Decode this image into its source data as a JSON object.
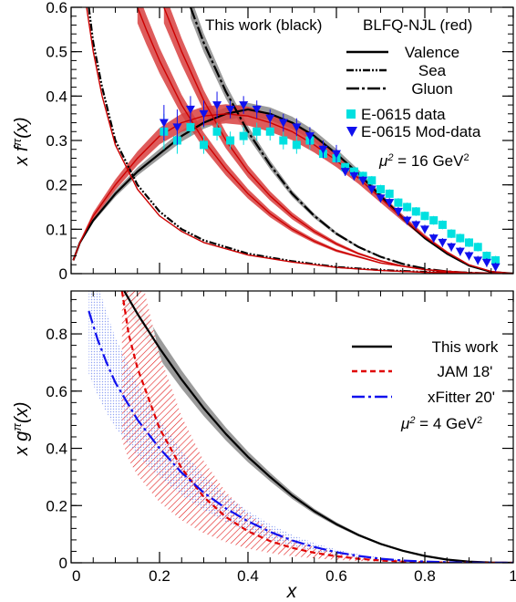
{
  "chart_data": [
    {
      "type": "line",
      "panel": "top",
      "ylabel": "x f^π(x)",
      "ylabel_base": "x f",
      "ylabel_sup": "π",
      "ylabel_tail": "(x)",
      "xlim": [
        0,
        1
      ],
      "ylim": [
        0,
        0.6
      ],
      "yticks": [
        "0",
        "0.1",
        "0.2",
        "0.3",
        "0.4",
        "0.5",
        "0.6"
      ],
      "ytick_values": [
        0,
        0.1,
        0.2,
        0.3,
        0.4,
        0.5,
        0.6
      ],
      "xticks": [
        0,
        0.2,
        0.4,
        0.6,
        0.8,
        1.0
      ],
      "header_left": "This work (black)",
      "header_right": "BLFQ-NJL (red)",
      "scale_label": "μ² = 16 GeV²",
      "scale_base": "μ",
      "scale_sup": "2",
      "scale_value": " = 16 GeV",
      "scale_unit_sup": "2",
      "legend_placement": "top-right",
      "legend": [
        {
          "label": "Valence",
          "style": "solid"
        },
        {
          "label": "Sea",
          "style": "dash-dot-dot"
        },
        {
          "label": "Gluon",
          "style": "long-dash-dot"
        },
        {
          "label": "E-0615 data",
          "marker": "square",
          "color": "#00e0e0"
        },
        {
          "label": "E-0615 Mod-data",
          "marker": "triangle-down",
          "color": "#1010ee"
        }
      ],
      "series": [
        {
          "name": "Valence",
          "color": "#000000",
          "band_color": "#8a8a8a",
          "x": [
            0.005,
            0.02,
            0.05,
            0.1,
            0.15,
            0.2,
            0.25,
            0.3,
            0.35,
            0.4,
            0.45,
            0.5,
            0.55,
            0.6,
            0.65,
            0.7,
            0.75,
            0.8,
            0.85,
            0.9,
            0.95,
            1.0
          ],
          "y": [
            0.03,
            0.07,
            0.12,
            0.18,
            0.23,
            0.27,
            0.31,
            0.34,
            0.36,
            0.37,
            0.36,
            0.34,
            0.31,
            0.27,
            0.225,
            0.175,
            0.125,
            0.08,
            0.045,
            0.018,
            0.004,
            0.0
          ]
        },
        {
          "name": "Sea",
          "color": "#000000",
          "x": [
            0.04,
            0.05,
            0.07,
            0.1,
            0.15,
            0.2,
            0.25,
            0.3,
            0.4,
            0.5,
            0.6,
            0.7,
            0.8,
            0.9,
            1.0
          ],
          "y": [
            0.6,
            0.52,
            0.42,
            0.3,
            0.2,
            0.14,
            0.1,
            0.075,
            0.045,
            0.028,
            0.015,
            0.008,
            0.004,
            0.001,
            0.0
          ]
        },
        {
          "name": "Gluon",
          "color": "#000000",
          "band_color": "#8a8a8a",
          "x": [
            0.27,
            0.3,
            0.35,
            0.4,
            0.45,
            0.5,
            0.55,
            0.6,
            0.65,
            0.7,
            0.75,
            0.8,
            0.85,
            0.9,
            0.95,
            1.0
          ],
          "y": [
            0.6,
            0.52,
            0.41,
            0.32,
            0.245,
            0.18,
            0.13,
            0.09,
            0.06,
            0.038,
            0.022,
            0.011,
            0.005,
            0.002,
            0.0005,
            0.0
          ]
        },
        {
          "name": "BLFQ-NJL Valence",
          "color": "#cc0000",
          "band_color": "#d84040",
          "x": [
            0.005,
            0.02,
            0.05,
            0.1,
            0.15,
            0.2,
            0.25,
            0.3,
            0.35,
            0.4,
            0.45,
            0.5,
            0.55,
            0.6,
            0.65,
            0.7,
            0.75,
            0.8,
            0.85,
            0.9,
            0.95,
            1.0
          ],
          "y": [
            0.03,
            0.07,
            0.13,
            0.2,
            0.26,
            0.31,
            0.34,
            0.355,
            0.36,
            0.355,
            0.34,
            0.32,
            0.29,
            0.255,
            0.215,
            0.17,
            0.125,
            0.083,
            0.048,
            0.02,
            0.005,
            0.0
          ]
        },
        {
          "name": "BLFQ-NJL Sea",
          "color": "#cc0000",
          "x": [
            0.035,
            0.05,
            0.07,
            0.1,
            0.15,
            0.2,
            0.25,
            0.3,
            0.4,
            0.5,
            0.6,
            0.7,
            0.8,
            0.9,
            1.0
          ],
          "y": [
            0.6,
            0.5,
            0.4,
            0.29,
            0.19,
            0.13,
            0.095,
            0.07,
            0.042,
            0.026,
            0.014,
            0.007,
            0.003,
            0.001,
            0.0
          ]
        },
        {
          "name": "BLFQ-NJL Gluon",
          "color": "#cc0000",
          "band_color": "#d84040",
          "x": [
            0.21,
            0.25,
            0.3,
            0.35,
            0.4,
            0.45,
            0.5,
            0.55,
            0.6,
            0.65,
            0.7,
            0.75,
            0.8,
            0.85,
            0.9,
            0.95,
            1.0
          ],
          "y": [
            0.6,
            0.5,
            0.39,
            0.3,
            0.23,
            0.175,
            0.13,
            0.095,
            0.067,
            0.045,
            0.029,
            0.017,
            0.009,
            0.004,
            0.0015,
            0.0003,
            0.0
          ]
        },
        {
          "name": "BLFQ-NJL Steep",
          "color": "#cc0000",
          "band_color": "#d84040",
          "x": [
            0.15,
            0.17,
            0.2,
            0.25,
            0.3,
            0.35,
            0.4,
            0.45,
            0.5,
            0.55,
            0.6,
            0.7,
            0.8,
            0.9,
            1.0
          ],
          "y": [
            0.6,
            0.55,
            0.48,
            0.38,
            0.3,
            0.235,
            0.18,
            0.135,
            0.1,
            0.073,
            0.052,
            0.024,
            0.009,
            0.002,
            0.0
          ]
        }
      ],
      "scatter": [
        {
          "name": "E-0615 data",
          "color": "#00e0e0",
          "marker": "square",
          "x": [
            0.21,
            0.24,
            0.27,
            0.3,
            0.33,
            0.36,
            0.39,
            0.42,
            0.45,
            0.48,
            0.51,
            0.54,
            0.57,
            0.6,
            0.62,
            0.64,
            0.66,
            0.68,
            0.7,
            0.72,
            0.74,
            0.76,
            0.78,
            0.8,
            0.82,
            0.84,
            0.86,
            0.88,
            0.9,
            0.92,
            0.94,
            0.96
          ],
          "y": [
            0.32,
            0.3,
            0.33,
            0.29,
            0.32,
            0.3,
            0.31,
            0.32,
            0.32,
            0.3,
            0.29,
            0.3,
            0.27,
            0.26,
            0.24,
            0.23,
            0.22,
            0.21,
            0.19,
            0.18,
            0.16,
            0.15,
            0.14,
            0.13,
            0.12,
            0.11,
            0.09,
            0.08,
            0.07,
            0.06,
            0.04,
            0.03
          ],
          "err": [
            0.04,
            0.03,
            0.02,
            0.02,
            0.02,
            0.02,
            0.02,
            0.02,
            0.02,
            0.02,
            0.02,
            0.02,
            0.01,
            0.01,
            0.01,
            0.01,
            0.01,
            0.01,
            0.01,
            0.01,
            0.01,
            0.01,
            0.01,
            0.01,
            0.01,
            0.01,
            0.01,
            0.01,
            0.01,
            0.01,
            0.01,
            0.01
          ]
        },
        {
          "name": "E-0615 Mod-data",
          "color": "#1010ee",
          "marker": "triangle-down",
          "x": [
            0.21,
            0.24,
            0.27,
            0.3,
            0.33,
            0.36,
            0.39,
            0.42,
            0.45,
            0.48,
            0.51,
            0.54,
            0.57,
            0.6,
            0.62,
            0.64,
            0.66,
            0.68,
            0.7,
            0.72,
            0.74,
            0.76,
            0.78,
            0.8,
            0.82,
            0.84,
            0.86,
            0.88,
            0.9,
            0.92,
            0.94,
            0.96
          ],
          "y": [
            0.34,
            0.33,
            0.37,
            0.36,
            0.38,
            0.37,
            0.38,
            0.37,
            0.35,
            0.34,
            0.33,
            0.31,
            0.28,
            0.27,
            0.23,
            0.22,
            0.21,
            0.19,
            0.17,
            0.16,
            0.14,
            0.12,
            0.11,
            0.1,
            0.08,
            0.07,
            0.06,
            0.05,
            0.04,
            0.03,
            0.025,
            0.015
          ],
          "err": [
            0.04,
            0.04,
            0.03,
            0.03,
            0.03,
            0.02,
            0.02,
            0.02,
            0.02,
            0.02,
            0.02,
            0.02,
            0.02,
            0.02,
            0.01,
            0.01,
            0.01,
            0.01,
            0.01,
            0.01,
            0.01,
            0.01,
            0.01,
            0.01,
            0.01,
            0.01,
            0.01,
            0.01,
            0.01,
            0.01,
            0.01,
            0.01
          ]
        }
      ]
    },
    {
      "type": "line",
      "panel": "bottom",
      "xlabel": "x",
      "ylabel": "x g^π(x)",
      "ylabel_base": "x g",
      "ylabel_sup": "π",
      "ylabel_tail": "(x)",
      "xlim": [
        0,
        1
      ],
      "ylim": [
        0,
        0.95
      ],
      "yticks": [
        "0",
        "0.2",
        "0.4",
        "0.6",
        "0.8"
      ],
      "ytick_values": [
        0,
        0.2,
        0.4,
        0.6,
        0.8
      ],
      "xticks": [
        "0",
        "0.2",
        "0.4",
        "0.6",
        "0.8",
        "1"
      ],
      "xtick_values": [
        0,
        0.2,
        0.4,
        0.6,
        0.8,
        1.0
      ],
      "scale_label": "μ² = 4 GeV²",
      "scale_base": "μ",
      "scale_sup": "2",
      "scale_value": " = 4 GeV",
      "scale_unit_sup": "2",
      "legend_placement": "right",
      "legend": [
        {
          "label": "This work",
          "style": "solid",
          "color": "#000000"
        },
        {
          "label": "JAM 18'",
          "style": "dashed",
          "color": "#e00000"
        },
        {
          "label": "xFitter 20'",
          "style": "long-dash-dot",
          "color": "#1010ee"
        }
      ],
      "series": [
        {
          "name": "This work",
          "color": "#000000",
          "band_color": "#8a8a8a",
          "x": [
            0.12,
            0.15,
            0.2,
            0.25,
            0.3,
            0.35,
            0.4,
            0.45,
            0.5,
            0.55,
            0.6,
            0.65,
            0.7,
            0.75,
            0.8,
            0.85,
            0.9,
            0.95,
            1.0
          ],
          "y": [
            0.95,
            0.87,
            0.75,
            0.64,
            0.54,
            0.45,
            0.37,
            0.3,
            0.235,
            0.18,
            0.135,
            0.097,
            0.066,
            0.042,
            0.024,
            0.011,
            0.004,
            0.001,
            0.0
          ]
        },
        {
          "name": "JAM 18'",
          "color": "#e00000",
          "band_color": "#e00000",
          "x": [
            0.115,
            0.13,
            0.15,
            0.2,
            0.25,
            0.3,
            0.35,
            0.4,
            0.45,
            0.5,
            0.55,
            0.6,
            0.65,
            0.7,
            0.75,
            0.8,
            0.85,
            0.9,
            1.0
          ],
          "y": [
            0.95,
            0.8,
            0.68,
            0.47,
            0.33,
            0.23,
            0.16,
            0.11,
            0.076,
            0.052,
            0.035,
            0.023,
            0.014,
            0.008,
            0.004,
            0.002,
            0.0008,
            0.0002,
            0.0
          ]
        },
        {
          "name": "xFitter 20'",
          "color": "#1010ee",
          "band_color": "#3a5ae8",
          "x": [
            0.04,
            0.06,
            0.08,
            0.1,
            0.15,
            0.2,
            0.25,
            0.3,
            0.35,
            0.4,
            0.45,
            0.5,
            0.55,
            0.6,
            0.65,
            0.7,
            0.75,
            0.8,
            0.85,
            0.9,
            1.0
          ],
          "y": [
            0.88,
            0.78,
            0.7,
            0.63,
            0.5,
            0.4,
            0.315,
            0.245,
            0.19,
            0.145,
            0.108,
            0.078,
            0.055,
            0.037,
            0.024,
            0.014,
            0.008,
            0.004,
            0.002,
            0.0005,
            0.0
          ]
        }
      ]
    }
  ]
}
